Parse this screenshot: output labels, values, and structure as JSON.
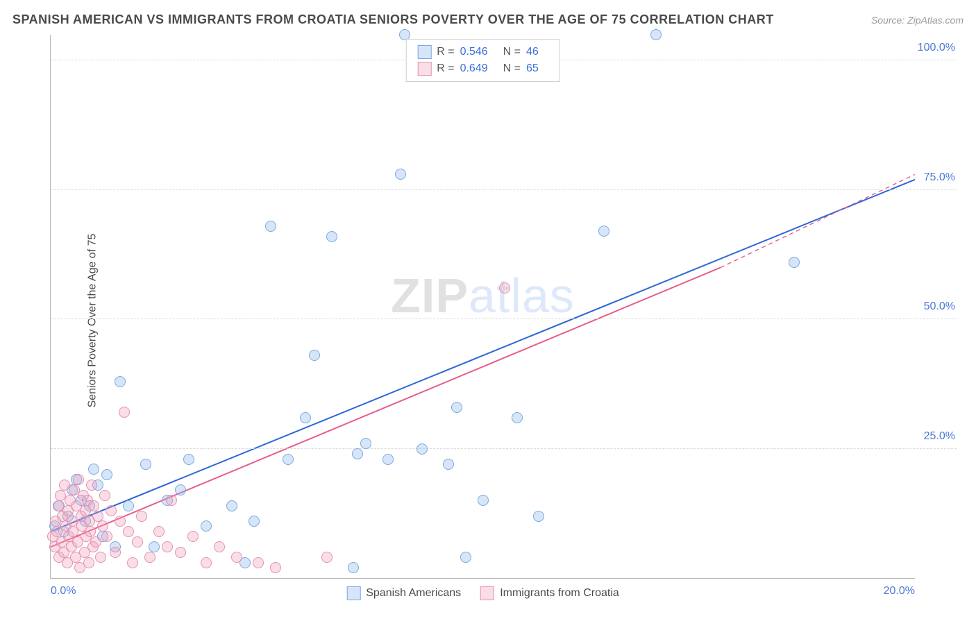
{
  "title": "SPANISH AMERICAN VS IMMIGRANTS FROM CROATIA SENIORS POVERTY OVER THE AGE OF 75 CORRELATION CHART",
  "source": "Source: ZipAtlas.com",
  "ylabel": "Seniors Poverty Over the Age of 75",
  "watermark_a": "ZIP",
  "watermark_b": "atlas",
  "chart": {
    "type": "scatter",
    "xlim": [
      0,
      20
    ],
    "ylim": [
      0,
      105
    ],
    "x_ticks": [
      {
        "v": 0,
        "l": "0.0%"
      },
      {
        "v": 20,
        "l": "20.0%"
      }
    ],
    "y_ticks": [
      {
        "v": 25,
        "l": "25.0%"
      },
      {
        "v": 50,
        "l": "50.0%"
      },
      {
        "v": 75,
        "l": "75.0%"
      },
      {
        "v": 100,
        "l": "100.0%"
      }
    ],
    "grid_color": "#d9d9d9",
    "axis_color": "#b8b8b8",
    "background_color": "#ffffff",
    "tick_label_color": "#4a78d6",
    "tick_fontsize": 16,
    "label_color": "#4a4a4a",
    "label_fontsize": 16,
    "marker_radius": 8,
    "marker_stroke_width": 1,
    "series": [
      {
        "key": "spanish",
        "label": "Spanish Americans",
        "fill": "rgba(140,180,235,0.35)",
        "stroke": "#7aa8e0",
        "R": "0.546",
        "N": "46",
        "trend": {
          "color": "#2d66da",
          "width": 2,
          "dash": "none",
          "x1": 0,
          "y1": 9,
          "x2": 20,
          "y2": 77
        },
        "points": [
          [
            0.1,
            10
          ],
          [
            0.2,
            14
          ],
          [
            0.3,
            9
          ],
          [
            0.4,
            12
          ],
          [
            0.5,
            17
          ],
          [
            0.6,
            19
          ],
          [
            0.7,
            15
          ],
          [
            0.8,
            11
          ],
          [
            0.9,
            14
          ],
          [
            1.0,
            21
          ],
          [
            1.1,
            18
          ],
          [
            1.2,
            8
          ],
          [
            1.3,
            20
          ],
          [
            1.5,
            6
          ],
          [
            1.6,
            38
          ],
          [
            1.8,
            14
          ],
          [
            2.2,
            22
          ],
          [
            2.4,
            6
          ],
          [
            2.7,
            15
          ],
          [
            3.0,
            17
          ],
          [
            3.2,
            23
          ],
          [
            3.6,
            10
          ],
          [
            4.2,
            14
          ],
          [
            4.5,
            3
          ],
          [
            4.7,
            11
          ],
          [
            5.1,
            68
          ],
          [
            5.5,
            23
          ],
          [
            5.9,
            31
          ],
          [
            6.1,
            43
          ],
          [
            6.5,
            66
          ],
          [
            7.0,
            2
          ],
          [
            7.1,
            24
          ],
          [
            7.3,
            26
          ],
          [
            7.8,
            23
          ],
          [
            8.1,
            78
          ],
          [
            8.2,
            105
          ],
          [
            8.6,
            25
          ],
          [
            9.2,
            22
          ],
          [
            9.4,
            33
          ],
          [
            9.6,
            4
          ],
          [
            10.0,
            15
          ],
          [
            10.8,
            31
          ],
          [
            11.3,
            12
          ],
          [
            12.8,
            67
          ],
          [
            14.0,
            105
          ],
          [
            17.2,
            61
          ]
        ]
      },
      {
        "key": "croatia",
        "label": "Immigrants from Croatia",
        "fill": "rgba(240,160,185,0.35)",
        "stroke": "#e68fb0",
        "R": "0.649",
        "N": "65",
        "trend": {
          "color": "#e85a8a",
          "width": 2,
          "dash": "none",
          "x1": 0,
          "y1": 6,
          "x2": 15.5,
          "y2": 60,
          "ext_x2": 20,
          "ext_y2": 78,
          "ext_dash": "6,5"
        },
        "points": [
          [
            0.05,
            8
          ],
          [
            0.1,
            6
          ],
          [
            0.12,
            11
          ],
          [
            0.15,
            9
          ],
          [
            0.18,
            14
          ],
          [
            0.2,
            4
          ],
          [
            0.22,
            16
          ],
          [
            0.25,
            7
          ],
          [
            0.28,
            12
          ],
          [
            0.3,
            5
          ],
          [
            0.32,
            18
          ],
          [
            0.35,
            10
          ],
          [
            0.38,
            3
          ],
          [
            0.4,
            13
          ],
          [
            0.42,
            8
          ],
          [
            0.45,
            15
          ],
          [
            0.48,
            6
          ],
          [
            0.5,
            11
          ],
          [
            0.52,
            9
          ],
          [
            0.55,
            17
          ],
          [
            0.58,
            4
          ],
          [
            0.6,
            14
          ],
          [
            0.62,
            7
          ],
          [
            0.65,
            19
          ],
          [
            0.68,
            2
          ],
          [
            0.7,
            12
          ],
          [
            0.72,
            10
          ],
          [
            0.75,
            16
          ],
          [
            0.78,
            5
          ],
          [
            0.8,
            13
          ],
          [
            0.82,
            8
          ],
          [
            0.85,
            15
          ],
          [
            0.88,
            3
          ],
          [
            0.9,
            11
          ],
          [
            0.92,
            9
          ],
          [
            0.95,
            18
          ],
          [
            0.98,
            6
          ],
          [
            1.0,
            14
          ],
          [
            1.05,
            7
          ],
          [
            1.1,
            12
          ],
          [
            1.15,
            4
          ],
          [
            1.2,
            10
          ],
          [
            1.25,
            16
          ],
          [
            1.3,
            8
          ],
          [
            1.4,
            13
          ],
          [
            1.5,
            5
          ],
          [
            1.6,
            11
          ],
          [
            1.7,
            32
          ],
          [
            1.8,
            9
          ],
          [
            1.9,
            3
          ],
          [
            2.0,
            7
          ],
          [
            2.1,
            12
          ],
          [
            2.3,
            4
          ],
          [
            2.5,
            9
          ],
          [
            2.7,
            6
          ],
          [
            2.8,
            15
          ],
          [
            3.0,
            5
          ],
          [
            3.3,
            8
          ],
          [
            3.6,
            3
          ],
          [
            3.9,
            6
          ],
          [
            4.3,
            4
          ],
          [
            4.8,
            3
          ],
          [
            5.2,
            2
          ],
          [
            6.4,
            4
          ],
          [
            10.5,
            56
          ]
        ]
      }
    ]
  },
  "legend_top": {
    "r_label": "R =",
    "n_label": "N ="
  }
}
